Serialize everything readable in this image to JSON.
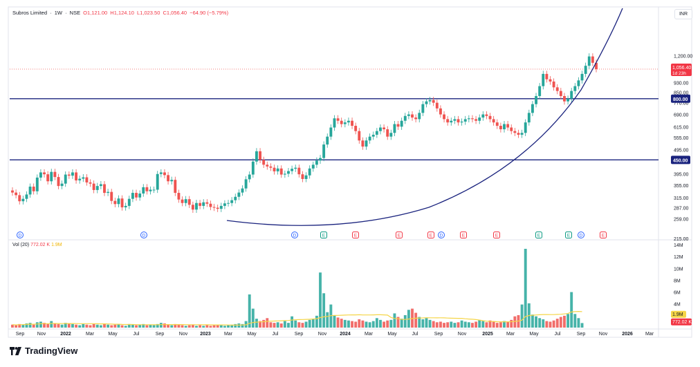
{
  "header": {
    "symbol": "Subros Limited",
    "interval": "1W",
    "exchange": "NSE",
    "open": "O1,121.00",
    "high": "H1,124.10",
    "low": "L1,023.50",
    "close": "C1,056.40",
    "change": "−64.90 (−5.79%)"
  },
  "currency": "INR",
  "price_axis": {
    "ticks": [
      "1,200.00",
      "930.00",
      "850.00",
      "770.00",
      "690.00",
      "615.00",
      "555.00",
      "495.00",
      "450.00",
      "395.00",
      "355.00",
      "315.00",
      "287.00",
      "259.00",
      "215.00"
    ],
    "current_price_label": "1,056.40",
    "countdown": "1d 23h",
    "level_labels": [
      "800.00",
      "450.00"
    ]
  },
  "volume_axis": {
    "ticks": [
      "14M",
      "12M",
      "10M",
      "8M",
      "6M",
      "4M"
    ],
    "ma_label": "1.9M",
    "vol_label": "772.02 K"
  },
  "volume_legend": {
    "name": "Vol (20)",
    "volume": "772.02 K",
    "ma": "1.9M"
  },
  "time_axis": [
    "Sep",
    "Nov",
    "2022",
    "Mar",
    "May",
    "Jul",
    "Sep",
    "Nov",
    "2023",
    "Mar",
    "May",
    "Jul",
    "Sep",
    "Nov",
    "2024",
    "Mar",
    "May",
    "Jul",
    "Sep",
    "Nov",
    "2025",
    "Mar",
    "May",
    "Jul",
    "Sep",
    "Nov",
    "2026",
    "Mar"
  ],
  "event_markers": [
    "D",
    "D",
    "D",
    "E",
    "E",
    "E",
    "E",
    "D",
    "E",
    "E",
    "E",
    "E",
    "D",
    "E"
  ],
  "brand": "TradingView",
  "colors": {
    "up": "#26a69a",
    "down": "#ef5350",
    "level": "#1a237e",
    "curve": "#1a237e",
    "ma": "#f5d547",
    "dividend": "#2962ff",
    "earn_up": "#089981",
    "earn_down": "#f23645"
  },
  "chart_data": {
    "type": "candlestick",
    "title": "Subros Limited · 1W · NSE",
    "ylabel": "",
    "xlabel": "",
    "y_scale": "log",
    "y_range": [
      215,
      1560
    ],
    "horizontal_levels": [
      800,
      450
    ],
    "current_price": 1056.4,
    "weekly_closes": [
      331,
      323,
      305,
      312,
      325,
      350,
      335,
      381,
      400,
      393,
      368,
      402,
      383,
      352,
      360,
      392,
      388,
      400,
      371,
      377,
      382,
      364,
      360,
      339,
      352,
      358,
      330,
      333,
      306,
      297,
      313,
      288,
      292,
      312,
      330,
      316,
      328,
      348,
      335,
      340,
      340,
      394,
      400,
      390,
      368,
      373,
      330,
      310,
      300,
      311,
      295,
      282,
      300,
      292,
      302,
      298,
      289,
      287,
      284,
      292,
      299,
      300,
      308,
      318,
      331,
      344,
      375,
      392,
      443,
      488,
      450,
      430,
      423,
      418,
      404,
      415,
      392,
      395,
      405,
      414,
      418,
      393,
      376,
      389,
      415,
      430,
      447,
      458,
      520,
      560,
      610,
      665,
      650,
      630,
      640,
      650,
      620,
      590,
      540,
      510,
      540,
      560,
      570,
      590,
      610,
      600,
      560,
      580,
      630,
      615,
      650,
      680,
      690,
      670,
      660,
      700,
      760,
      780,
      790,
      770,
      730,
      690,
      660,
      640,
      650,
      660,
      640,
      645,
      660,
      665,
      660,
      650,
      670,
      690,
      680,
      660,
      640,
      620,
      600,
      630,
      610,
      590,
      580,
      570,
      580,
      640,
      700,
      760,
      820,
      900,
      1010,
      960,
      940,
      890,
      860,
      820,
      780,
      800,
      860,
      900,
      950,
      1010,
      1090,
      1190,
      1121,
      1056.4
    ],
    "volume_millions": [
      0.5,
      0.4,
      0.6,
      0.5,
      0.7,
      0.8,
      0.5,
      0.9,
      1.0,
      0.8,
      0.6,
      1.1,
      0.7,
      0.6,
      0.5,
      0.8,
      0.7,
      0.6,
      0.5,
      0.4,
      0.6,
      0.5,
      0.4,
      0.6,
      0.5,
      0.4,
      0.6,
      0.5,
      0.4,
      0.5,
      0.6,
      0.4,
      0.3,
      0.6,
      0.5,
      0.4,
      0.5,
      0.6,
      0.4,
      0.5,
      0.4,
      0.6,
      0.8,
      0.7,
      0.5,
      0.4,
      0.6,
      0.5,
      0.4,
      0.3,
      0.4,
      0.5,
      0.3,
      0.4,
      0.3,
      0.4,
      0.3,
      0.4,
      0.5,
      0.4,
      0.3,
      0.4,
      0.5,
      0.6,
      0.7,
      0.6,
      1.1,
      5.6,
      3.2,
      1.5,
      1.1,
      1.3,
      1.6,
      0.9,
      0.8,
      0.9,
      0.7,
      1.1,
      0.8,
      1.9,
      1.2,
      0.9,
      0.8,
      1.0,
      1.3,
      1.5,
      2.0,
      9.3,
      5.8,
      2.6,
      3.9,
      2.1,
      1.7,
      1.5,
      1.3,
      1.2,
      1.1,
      1.0,
      1.4,
      1.2,
      1.0,
      0.9,
      1.1,
      1.6,
      1.3,
      1.0,
      1.2,
      1.3,
      2.4,
      1.8,
      1.5,
      2.1,
      3.0,
      3.2,
      2.5,
      1.8,
      1.4,
      1.6,
      1.3,
      1.1,
      0.9,
      1.0,
      0.8,
      0.9,
      1.0,
      0.8,
      0.9,
      1.2,
      1.0,
      0.9,
      0.8,
      1.0,
      1.3,
      1.1,
      0.9,
      1.2,
      1.0,
      0.8,
      0.9,
      1.1,
      1.0,
      1.3,
      1.9,
      2.1,
      3.9,
      13.3,
      4.1,
      2.2,
      1.9,
      1.6,
      1.4,
      1.1,
      1.0,
      1.2,
      1.5,
      1.8,
      2.0,
      2.3,
      6.0,
      2.3,
      1.6,
      0.77
    ],
    "volume_ma_millions": 1.9,
    "annotations": [
      "Rising parabolic support curve drawn from Mar 2023 low",
      "Horizontal level 800.00",
      "Horizontal level 450.00"
    ]
  }
}
